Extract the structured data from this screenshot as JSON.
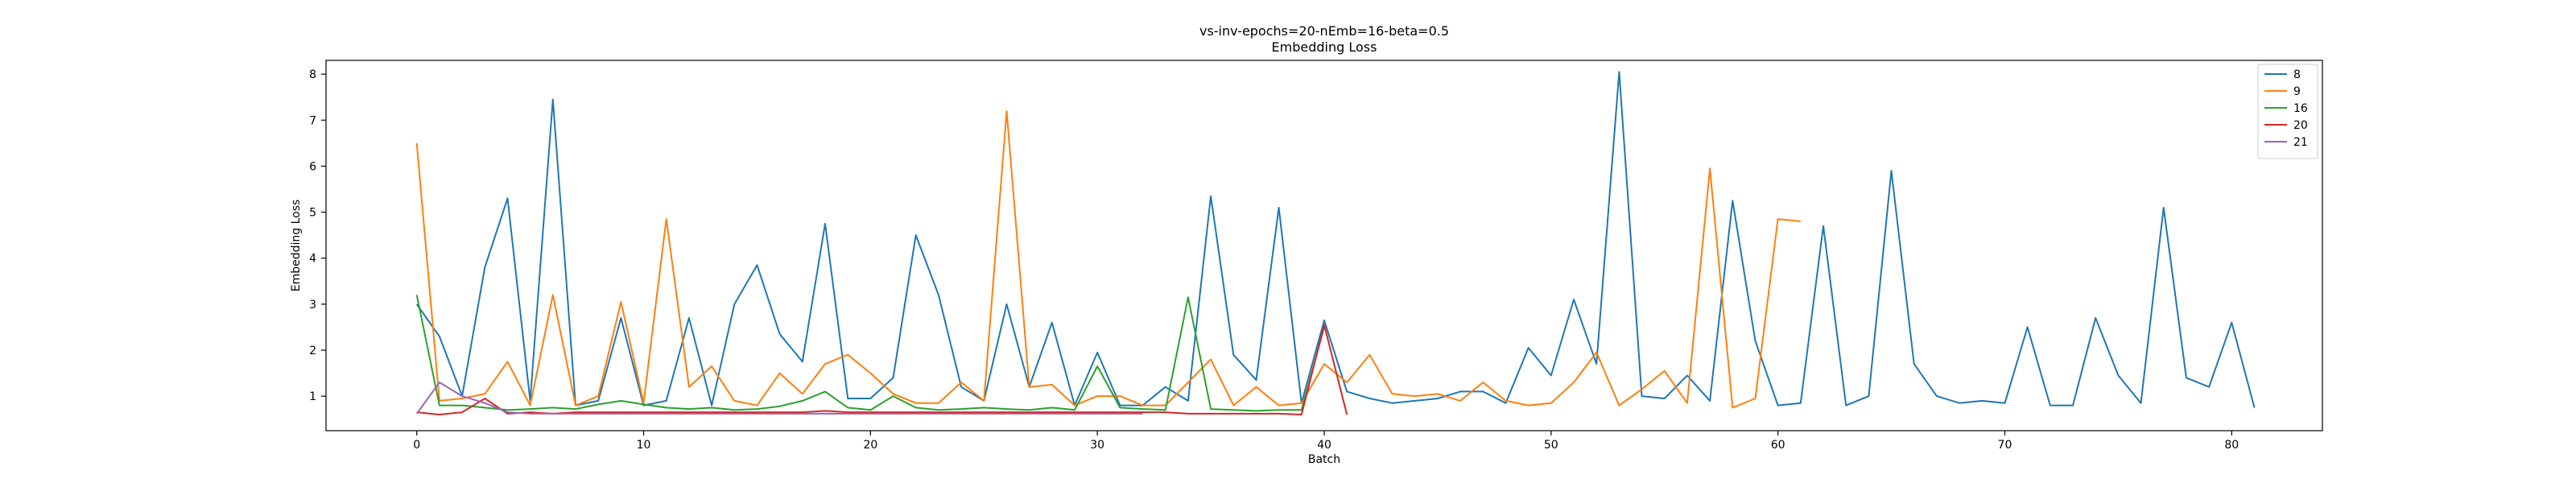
{
  "chart_data": {
    "type": "line",
    "title": "vs-inv-epochs=20-nEmb=16-beta=0.5",
    "subtitle": "Embedding Loss",
    "xlabel": "Batch",
    "ylabel": "Embedding Loss",
    "xlim": [
      -4,
      84
    ],
    "ylim": [
      0.25,
      8.3
    ],
    "xticks": [
      0,
      10,
      20,
      30,
      40,
      50,
      60,
      70,
      80
    ],
    "yticks": [
      1,
      2,
      3,
      4,
      5,
      6,
      7,
      8
    ],
    "grid": false,
    "legend_position": "top-right",
    "series": [
      {
        "name": "8",
        "color": "#1f77b4",
        "values": [
          3.0,
          2.3,
          1.0,
          3.8,
          5.3,
          0.9,
          7.45,
          0.8,
          0.9,
          2.7,
          0.8,
          0.9,
          2.7,
          0.8,
          3.0,
          3.85,
          2.35,
          1.75,
          4.75,
          0.95,
          0.95,
          1.4,
          4.5,
          3.2,
          1.2,
          0.9,
          3.0,
          1.2,
          2.6,
          0.8,
          1.95,
          0.8,
          0.8,
          1.2,
          0.9,
          5.35,
          1.9,
          1.35,
          5.1,
          0.85,
          2.65,
          1.1,
          0.95,
          0.85,
          0.9,
          0.95,
          1.1,
          1.1,
          0.85,
          2.05,
          1.45,
          3.1,
          1.7,
          8.05,
          1.0,
          0.95,
          1.45,
          0.9,
          5.25,
          2.2,
          0.8,
          0.85,
          4.7,
          0.8,
          1.0,
          5.9,
          1.7,
          1.0,
          0.85,
          0.9,
          0.85,
          2.5,
          0.8,
          0.8,
          2.7,
          1.45,
          0.85,
          5.1,
          1.4,
          1.2,
          2.6,
          0.75
        ]
      },
      {
        "name": "9",
        "color": "#ff7f0e",
        "values": [
          6.5,
          0.9,
          0.95,
          1.05,
          1.75,
          0.8,
          3.2,
          0.8,
          1.0,
          3.05,
          0.85,
          4.85,
          1.2,
          1.65,
          0.9,
          0.8,
          1.5,
          1.05,
          1.7,
          1.9,
          1.5,
          1.05,
          0.85,
          0.85,
          1.3,
          0.9,
          7.2,
          1.2,
          1.25,
          0.8,
          1.0,
          1.0,
          0.8,
          0.8,
          1.3,
          1.8,
          0.8,
          1.2,
          0.8,
          0.85,
          1.7,
          1.3,
          1.9,
          1.05,
          1.0,
          1.05,
          0.9,
          1.3,
          0.9,
          0.8,
          0.85,
          1.3,
          1.95,
          0.8,
          1.15,
          1.55,
          0.85,
          5.95,
          0.75,
          0.95,
          4.85,
          4.8
        ]
      },
      {
        "name": "16",
        "color": "#2ca02c",
        "values": [
          3.2,
          0.8,
          0.8,
          0.75,
          0.7,
          0.72,
          0.75,
          0.72,
          0.82,
          0.9,
          0.82,
          0.75,
          0.72,
          0.75,
          0.7,
          0.72,
          0.78,
          0.9,
          1.1,
          0.75,
          0.7,
          1.0,
          0.75,
          0.7,
          0.72,
          0.75,
          0.72,
          0.7,
          0.75,
          0.7,
          1.65,
          0.75,
          0.72,
          0.7,
          3.15,
          0.72,
          0.7,
          0.68,
          0.7,
          0.7,
          2.5
        ]
      },
      {
        "name": "20",
        "color": "#d62728",
        "values": [
          0.65,
          0.6,
          0.65,
          0.95,
          0.62,
          0.65,
          0.62,
          0.65,
          0.65,
          0.65,
          0.65,
          0.65,
          0.65,
          0.65,
          0.65,
          0.65,
          0.65,
          0.65,
          0.68,
          0.65,
          0.65,
          0.65,
          0.65,
          0.65,
          0.65,
          0.65,
          0.65,
          0.65,
          0.65,
          0.65,
          0.65,
          0.65,
          0.65,
          0.65,
          0.62,
          0.62,
          0.62,
          0.62,
          0.62,
          0.6,
          2.55,
          0.6
        ]
      },
      {
        "name": "21",
        "color": "#9467bd",
        "values": [
          0.62,
          1.3,
          1.0,
          0.85,
          0.65,
          0.62,
          0.62,
          0.62,
          0.62,
          0.62,
          0.62,
          0.62,
          0.62,
          0.62,
          0.62,
          0.62,
          0.62,
          0.62,
          0.62,
          0.62,
          0.62,
          0.62,
          0.62,
          0.62,
          0.62,
          0.62,
          0.62,
          0.62,
          0.62,
          0.62,
          0.62,
          0.62,
          0.62
        ]
      }
    ]
  }
}
